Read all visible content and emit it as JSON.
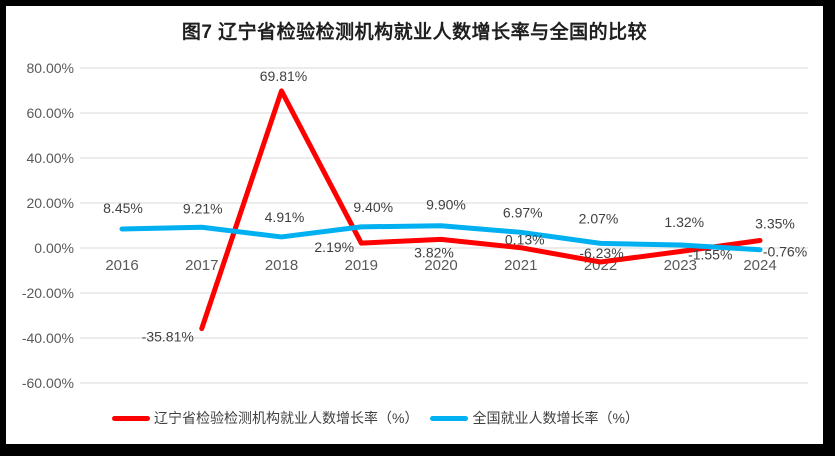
{
  "frame": {
    "border_color": "#000000",
    "background": "#FFFFFF"
  },
  "chart_data": {
    "type": "line",
    "title": "图7 辽宁省检验检测机构就业人数增长率与全国的比较",
    "categories": [
      "2016",
      "2017",
      "2018",
      "2019",
      "2020",
      "2021",
      "2022",
      "2023",
      "2024"
    ],
    "series": [
      {
        "name": "辽宁省检验检测机构就业人数增长率（%）",
        "color": "#FF0000",
        "values": [
          null,
          -35.81,
          69.81,
          2.19,
          3.82,
          0.13,
          -6.23,
          -1.55,
          3.35
        ],
        "labels": [
          "",
          "-35.81%",
          "69.81%",
          "2.19%",
          "3.82%",
          "0.13%",
          "-6.23%",
          "-1.55%",
          "3.35%"
        ]
      },
      {
        "name": "全国就业人数增长率（%）",
        "color": "#00B0F0",
        "values": [
          8.45,
          9.21,
          4.91,
          9.4,
          9.9,
          6.97,
          2.07,
          1.32,
          -0.76
        ],
        "labels": [
          "8.45%",
          "9.21%",
          "4.91%",
          "9.40%",
          "9.90%",
          "6.97%",
          "2.07%",
          "1.32%",
          "-0.76%"
        ]
      }
    ],
    "y_ticks": [
      {
        "value": 80,
        "label": "80.00%"
      },
      {
        "value": 60,
        "label": "60.00%"
      },
      {
        "value": 40,
        "label": "40.00%"
      },
      {
        "value": 20,
        "label": "20.00%"
      },
      {
        "value": 0,
        "label": "0.00%"
      },
      {
        "value": -20,
        "label": "-20.00%"
      },
      {
        "value": -40,
        "label": "-40.00%"
      },
      {
        "value": -60,
        "label": "-60.00%"
      }
    ],
    "xlabel": "",
    "ylabel": "",
    "ylim": [
      -60,
      80
    ],
    "grid": true,
    "legend_position": "bottom",
    "colors": {
      "gridline": "#D9D9D9",
      "axis_text": "#595959",
      "data_label": "#404040",
      "title_text": "#1F1F1F"
    }
  }
}
